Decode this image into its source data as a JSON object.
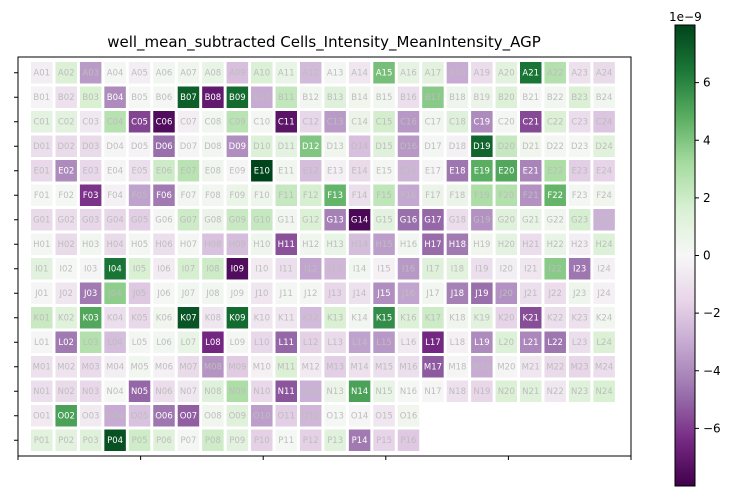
{
  "chart_data": {
    "type": "heatmap",
    "title": "well_mean_subtracted Cells_Intensity_MeanIntensity_AGP",
    "rows": [
      "A",
      "B",
      "C",
      "D",
      "E",
      "F",
      "G",
      "H",
      "I",
      "J",
      "K",
      "L",
      "M",
      "N",
      "O",
      "P"
    ],
    "columns": [
      1,
      2,
      3,
      4,
      5,
      6,
      7,
      8,
      9,
      10,
      11,
      12,
      13,
      14,
      15,
      16,
      17,
      18,
      19,
      20,
      21,
      22,
      23,
      24
    ],
    "grid": [
      [
        -0.4,
        1.5,
        -3.5,
        0.2,
        -0.4,
        0.3,
        0.4,
        0.8,
        -2.3,
        1.5,
        0.8,
        -2.5,
        0.2,
        -0.8,
        4.2,
        0.9,
        1.1,
        -3.0,
        -1.2,
        1.1,
        6.5,
        2.8,
        -1.0,
        -1.3
      ],
      [
        -0.2,
        -1.0,
        1.6,
        -4.0,
        0.1,
        0.2,
        7.2,
        -7.0,
        6.8,
        -3.0,
        2.3,
        0.3,
        1.3,
        0.4,
        0.3,
        -1.1,
        3.8,
        0.5,
        0.6,
        1.4,
        0.1,
        0.3,
        1.5,
        0.3
      ],
      [
        1.0,
        1.1,
        -0.7,
        2.7,
        -5.8,
        -7.5,
        -0.4,
        0.3,
        2.6,
        0.2,
        -7.2,
        -1.5,
        -3.5,
        0.6,
        1.8,
        -3.6,
        0.3,
        1.3,
        -4.0,
        0.2,
        -5.7,
        1.5,
        -1.2,
        -2.1
      ],
      [
        -1.1,
        -1.3,
        -1.3,
        -0.1,
        -0.2,
        -4.8,
        -0.1,
        0.3,
        -3.9,
        1.4,
        1.0,
        4.0,
        0.4,
        -2.3,
        1.3,
        -3.6,
        0.2,
        -0.3,
        7.0,
        2.2,
        0.4,
        0.2,
        0.1,
        1.2
      ],
      [
        -1.4,
        -4.0,
        -1.4,
        -0.1,
        -1.1,
        2.0,
        2.6,
        0.4,
        -0.1,
        8.0,
        0.3,
        -2.4,
        -0.3,
        -1.3,
        0.2,
        -2.7,
        -0.1,
        -4.6,
        4.8,
        5.0,
        -4.2,
        3.0,
        -1.8,
        -1.6
      ],
      [
        0.1,
        0.1,
        -6.2,
        -0.3,
        -3.3,
        -4.5,
        0.3,
        0.3,
        0.7,
        0.5,
        2.2,
        1.7,
        4.6,
        -1.1,
        2.4,
        -3.1,
        0.6,
        0.6,
        3.0,
        2.8,
        -3.8,
        4.6,
        0.2,
        0.4
      ],
      [
        -1.3,
        -1.2,
        -1.5,
        -1.5,
        -1.8,
        0.2,
        2.0,
        0.6,
        2.1,
        2.2,
        0.3,
        1.5,
        -4.3,
        -7.7,
        1.1,
        -4.8,
        -5.0,
        -1.2,
        -3.8,
        1.3,
        0.8,
        0.4,
        1.7,
        -2.8
      ],
      [
        0.2,
        -1.3,
        0.3,
        -1.3,
        0.2,
        -1.1,
        0.2,
        -2.2,
        -2.4,
        0.5,
        -5.5,
        0.4,
        0.8,
        -2.4,
        -3.4,
        0.3,
        -4.9,
        -4.5,
        0.4,
        1.0,
        -1.2,
        0.8,
        -0.4,
        1.4
      ],
      [
        1.1,
        0.1,
        -0.1,
        6.5,
        1.6,
        -0.5,
        1.7,
        2.0,
        -7.5,
        -0.5,
        -1.1,
        -3.2,
        -2.6,
        0.3,
        -0.3,
        -3.6,
        1.3,
        1.1,
        -1.1,
        -0.4,
        -0.8,
        3.8,
        -4.6,
        -0.3
      ],
      [
        -0.1,
        -0.8,
        -4.5,
        3.7,
        -2.0,
        0.1,
        0.3,
        0.3,
        0.1,
        -0.8,
        0.2,
        0.2,
        -1.5,
        -1.0,
        -3.9,
        -3.2,
        0.3,
        -4.3,
        -4.8,
        -3.8,
        -1.1,
        -1.2,
        0.5,
        -0.3
      ],
      [
        2.1,
        1.2,
        5.0,
        -1.1,
        -1.4,
        0.4,
        7.5,
        -0.8,
        6.8,
        -0.8,
        -0.8,
        -2.5,
        1.6,
        0.3,
        5.8,
        1.4,
        2.0,
        0.4,
        1.1,
        -1.6,
        -5.6,
        -1.1,
        -1.0,
        0.3
      ],
      [
        -0.1,
        -4.5,
        2.8,
        -2.4,
        0.2,
        0.3,
        0.8,
        -6.5,
        0.2,
        -1.4,
        -5.0,
        -1.7,
        -1.3,
        -3.3,
        -3.6,
        -0.6,
        -6.5,
        -0.3,
        -4.0,
        1.4,
        -4.1,
        -4.6,
        -1.1,
        1.5
      ],
      [
        -1.0,
        -0.9,
        -1.3,
        -0.4,
        0.3,
        -0.3,
        -1.3,
        -3.7,
        -1.9,
        -0.3,
        1.5,
        -0.6,
        -1.8,
        -1.0,
        -1.1,
        -1.1,
        -5.3,
        -0.1,
        -3.0,
        -0.1,
        -0.8,
        -1.3,
        -1.5,
        -1.2
      ],
      [
        -1.1,
        -1.3,
        -1.4,
        0.1,
        -5.0,
        -1.2,
        -0.7,
        1.3,
        3.0,
        -1.4,
        -5.4,
        -2.8,
        0.6,
        5.2,
        0.8,
        0.1,
        -0.1,
        -1.0,
        -1.5,
        1.5,
        1.3,
        -0.7,
        1.3,
        1.6
      ],
      [
        -0.6,
        5.2,
        -0.6,
        -3.0,
        -2.2,
        -4.6,
        -5.2,
        0.4,
        1.3,
        -3.4,
        -1.8,
        -2.6,
        0.1,
        -0.1,
        -0.8,
        0.4,
        null,
        null,
        null,
        null,
        null,
        null,
        null,
        null
      ],
      [
        1.1,
        1.1,
        1.3,
        7.6,
        1.9,
        1.3,
        0.2,
        1.9,
        1.1,
        -1.7,
        0.1,
        -1.7,
        1.2,
        -4.5,
        -1.6,
        -2.0,
        null,
        null,
        null,
        null,
        null,
        null,
        null,
        null
      ]
    ],
    "colormap": "PRGn",
    "vmin": -8e-09,
    "vmax": 8e-09,
    "value_scale": "1e-9",
    "colorbar_ticks": [
      -6,
      -4,
      -2,
      0,
      2,
      4,
      6
    ],
    "colorbar_label_multiplier": "1e−9",
    "grid_lines": false
  },
  "colors": {
    "text_light": "#ffffff",
    "text_dark": "#bdbdbd",
    "background": "#ffffff",
    "cell_border": "#ffffff"
  }
}
